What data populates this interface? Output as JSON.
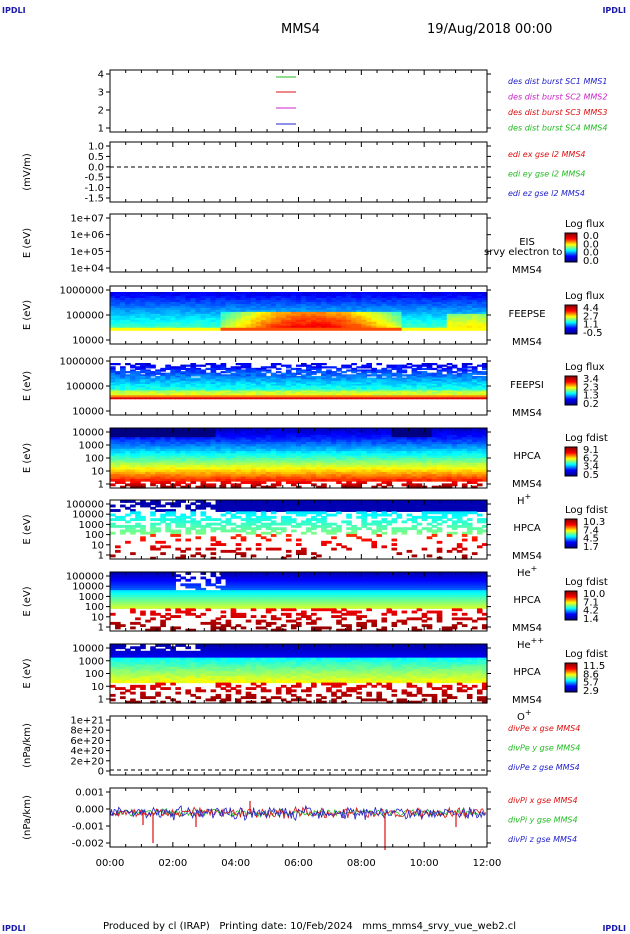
{
  "corners": {
    "tl": "IPDLI",
    "tr": "IPDLI",
    "bl": "IPDLI",
    "br": "IPDLI"
  },
  "header": {
    "spacecraft": "MMS4",
    "datetime": "19/Aug/2018 00:00"
  },
  "footer": {
    "text": "Produced by cl (IRAP)   Printing date: 10/Feb/2024   mms_mms4_srvy_vue_web2.cl"
  },
  "colors": {
    "blue": "#2222cc",
    "magenta": "#cc22cc",
    "red": "#dd1111",
    "green": "#22bb22"
  },
  "chart_data": {
    "type": "spectrogram-stack",
    "time_axis": {
      "labels": [
        "00:00",
        "02:00",
        "04:00",
        "06:00",
        "08:00",
        "10:00",
        "12:00"
      ],
      "range_hours": [
        0,
        12
      ]
    },
    "panels": [
      {
        "id": "burst",
        "type": "line",
        "ylabel": "",
        "ticks": [
          "4",
          "3",
          "2",
          "1"
        ],
        "legend": [
          {
            "text": "des dist burst SC1 MMS1",
            "color": "#2222cc"
          },
          {
            "text": "des dist burst SC2 MMS2",
            "color": "#cc22cc"
          },
          {
            "text": "des dist burst SC3 MMS3",
            "color": "#dd1111"
          },
          {
            "text": "des dist burst SC4 MMS4",
            "color": "#22bb22"
          }
        ]
      },
      {
        "id": "edi",
        "type": "line",
        "ylabel": "(mV/m)",
        "ticks": [
          "1.0",
          "0.5",
          "0.0",
          "-0.5",
          "-1.0",
          "-1.5"
        ],
        "legend": [
          {
            "text": "edi ex gse l2 MMS4",
            "color": "#dd1111"
          },
          {
            "text": "edi ey gse l2 MMS4",
            "color": "#22bb22"
          },
          {
            "text": "edi ez gse l2 MMS4",
            "color": "#2222cc"
          }
        ]
      },
      {
        "id": "eis",
        "type": "heatmap",
        "ylabel": "E (eV)",
        "ticks": [
          "1e+07",
          "1e+06",
          "1e+05",
          "1e+04"
        ],
        "instrument": [
          "EIS",
          "MMS4"
        ],
        "overlay": "srvy electron to",
        "cb_title": "Log flux",
        "cb_values": [
          "0.0",
          "0.0",
          "0.0",
          "0.0"
        ],
        "fill": "none"
      },
      {
        "id": "feepse",
        "type": "heatmap",
        "ylabel": "E (eV)",
        "ticks": [
          "1000000",
          "100000",
          "10000"
        ],
        "instrument": [
          "FEEPSE",
          "MMS4"
        ],
        "cb_title": "Log flux",
        "cb_values": [
          "4.4",
          "2.7",
          "1.1",
          "-0.5"
        ],
        "fill": "feeps_e"
      },
      {
        "id": "feepsi",
        "type": "heatmap",
        "ylabel": "E (eV)",
        "ticks": [
          "1000000",
          "100000",
          "10000"
        ],
        "instrument": [
          "FEEPSI",
          "MMS4"
        ],
        "cb_title": "Log flux",
        "cb_values": [
          "3.4",
          "2.3",
          "1.3",
          "0.2"
        ],
        "fill": "feeps_i"
      },
      {
        "id": "hpca_h",
        "type": "heatmap",
        "ylabel": "E (eV)",
        "ticks": [
          "10000",
          "1000",
          "100",
          "10",
          "1"
        ],
        "instrument": [
          "HPCA",
          "MMS4"
        ],
        "species": "H",
        "sup": "+",
        "cb_title": "Log fdist",
        "cb_values": [
          "9.1",
          "6.2",
          "3.4",
          "0.5"
        ],
        "fill": "hpca_h"
      },
      {
        "id": "hpca_he",
        "type": "heatmap",
        "ylabel": "E (eV)",
        "ticks": [
          "100000",
          "10000",
          "1000",
          "100",
          "10",
          "1"
        ],
        "instrument": [
          "HPCA",
          "MMS4"
        ],
        "species": "He",
        "sup": "+",
        "cb_title": "Log fdist",
        "cb_values": [
          "10.3",
          "7.4",
          "4.5",
          "1.7"
        ],
        "fill": "hpca_he"
      },
      {
        "id": "hpca_hepp",
        "type": "heatmap",
        "ylabel": "E (eV)",
        "ticks": [
          "100000",
          "10000",
          "1000",
          "100",
          "10",
          "1"
        ],
        "instrument": [
          "HPCA",
          "MMS4"
        ],
        "species": "He",
        "sup": "++",
        "cb_title": "Log fdist",
        "cb_values": [
          "10.0",
          "7.1",
          "4.2",
          "1.4"
        ],
        "fill": "hpca_hepp"
      },
      {
        "id": "hpca_o",
        "type": "heatmap",
        "ylabel": "E (eV)",
        "ticks": [
          "10000",
          "1000",
          "100",
          "10",
          "1"
        ],
        "instrument": [
          "HPCA",
          "MMS4"
        ],
        "species": "O",
        "sup": "+",
        "cb_title": "Log fdist",
        "cb_values": [
          "11.5",
          "8.6",
          "5.7",
          "2.9"
        ],
        "fill": "hpca_o"
      },
      {
        "id": "divpe",
        "type": "line",
        "ylabel": "(nPa/km)",
        "ticks": [
          "1e+21",
          "8e+20",
          "6e+20",
          "4e+20",
          "2e+20",
          "0"
        ],
        "legend": [
          {
            "text": "divPe x gse MMS4",
            "color": "#dd1111"
          },
          {
            "text": "divPe y gse MMS4",
            "color": "#22bb22"
          },
          {
            "text": "divPe z gse MMS4",
            "color": "#2222cc"
          }
        ]
      },
      {
        "id": "divpi",
        "type": "line",
        "ylabel": "(nPa/km)",
        "ticks": [
          "0.001",
          "0.000",
          "-0.001",
          "-0.002"
        ],
        "legend": [
          {
            "text": "divPi x gse MMS4",
            "color": "#dd1111"
          },
          {
            "text": "divPi y gse MMS4",
            "color": "#22bb22"
          },
          {
            "text": "divPi z gse MMS4",
            "color": "#2222cc"
          }
        ]
      }
    ]
  }
}
